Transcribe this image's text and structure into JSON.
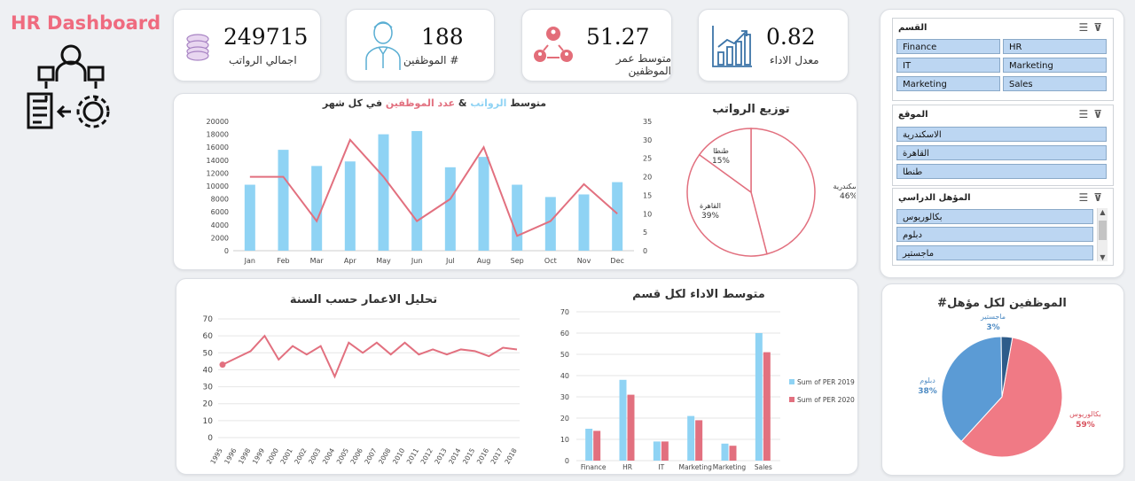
{
  "header": {
    "title": "HR Dashboard"
  },
  "kpis": [
    {
      "value": "249715",
      "label": "اجمالي الرواتب",
      "icon": "coins-icon"
    },
    {
      "value": "188",
      "label": "# الموظفين",
      "icon": "employee-icon"
    },
    {
      "value": "51.27",
      "label": "متوسط عمر الموظفين",
      "icon": "people-network-icon"
    },
    {
      "value": "0.82",
      "label": "معدل الاداء",
      "icon": "growth-chart-icon"
    }
  ],
  "slicers": {
    "dept": {
      "title": "القسم",
      "items": [
        "Finance",
        "HR",
        "IT",
        "Marketing",
        "Marketing",
        "Sales"
      ]
    },
    "location": {
      "title": "الموقع",
      "items": [
        "الاسكندرية",
        "القاهرة",
        "طنطا"
      ]
    },
    "education": {
      "title": "المؤهل الدراسي",
      "items": [
        "بكالوريوس",
        "دبلوم",
        "ماجستير"
      ]
    }
  },
  "colors": {
    "blue": "#8fd3f4",
    "red": "#e2707f",
    "pie_blue": "#5b9bd5",
    "pie_dark": "#2e5c8a",
    "pie_red": "#f07a85"
  },
  "chart_data": [
    {
      "type": "bar",
      "title_parts": [
        "متوسط",
        "الرواتب",
        "&",
        "عدد الموظفين",
        "في كل شهر"
      ],
      "categories": [
        "Jan",
        "Feb",
        "Mar",
        "Apr",
        "May",
        "Jun",
        "Jul",
        "Aug",
        "Sep",
        "Oct",
        "Nov",
        "Dec"
      ],
      "series": [
        {
          "name": "الرواتب",
          "values": [
            10200,
            15600,
            13100,
            13800,
            18000,
            18500,
            12900,
            14500,
            10200,
            8300,
            8700,
            10600
          ]
        },
        {
          "name": "عدد الموظفين",
          "values": [
            20,
            20,
            8,
            30,
            20,
            8,
            14,
            28,
            4,
            8,
            18,
            10
          ]
        }
      ],
      "ylim": [
        0,
        20000
      ],
      "y2lim": [
        0,
        35
      ],
      "yticks": [
        0,
        2000,
        4000,
        6000,
        8000,
        10000,
        12000,
        14000,
        16000,
        18000,
        20000
      ],
      "y2ticks": [
        0,
        5,
        10,
        15,
        20,
        25,
        30,
        35
      ],
      "grid": false
    },
    {
      "type": "pie",
      "title": "توزيع الرواتب",
      "labels": [
        "الاسكندرية",
        "القاهرة",
        "طنطا"
      ],
      "values": [
        46,
        39,
        15
      ],
      "value_labels": [
        "46%",
        "39%",
        "15%"
      ]
    },
    {
      "type": "line",
      "title": "تحليل الاعمار حسب السنة",
      "x": [
        "1995",
        "1996",
        "1998",
        "1999",
        "2000",
        "2001",
        "2002",
        "2003",
        "2004",
        "2005",
        "2006",
        "2007",
        "2008",
        "2010",
        "2011",
        "2012",
        "2013",
        "2014",
        "2015",
        "2016",
        "2017",
        "2018"
      ],
      "values": [
        43,
        47,
        51,
        60,
        46,
        54,
        49,
        54,
        36,
        56,
        50,
        56,
        49,
        56,
        49,
        52,
        49,
        52,
        51,
        48,
        53,
        52
      ],
      "ylim": [
        0,
        70
      ],
      "yticks": [
        0,
        10,
        20,
        30,
        40,
        50,
        60,
        70
      ]
    },
    {
      "type": "bar",
      "title": "متوسط الاداء لكل قسم",
      "categories": [
        "Finance",
        "HR",
        "IT",
        "Marketing",
        "Marketing",
        "Sales"
      ],
      "series": [
        {
          "name": "Sum of PER 2019",
          "values": [
            15,
            38,
            9,
            21,
            8,
            60
          ]
        },
        {
          "name": "Sum of PER 2020",
          "values": [
            14,
            31,
            9,
            19,
            7,
            51
          ]
        }
      ],
      "ylim": [
        0,
        70
      ],
      "yticks": [
        0,
        10,
        20,
        30,
        40,
        50,
        60,
        70
      ],
      "legend": "right"
    },
    {
      "type": "pie",
      "title": "#الموظفين لكل مؤهل",
      "labels": [
        "بكالوريوس",
        "دبلوم",
        "ماجستير"
      ],
      "values": [
        59,
        38,
        3
      ],
      "value_labels": [
        "59%",
        "38%",
        "3%"
      ]
    }
  ]
}
